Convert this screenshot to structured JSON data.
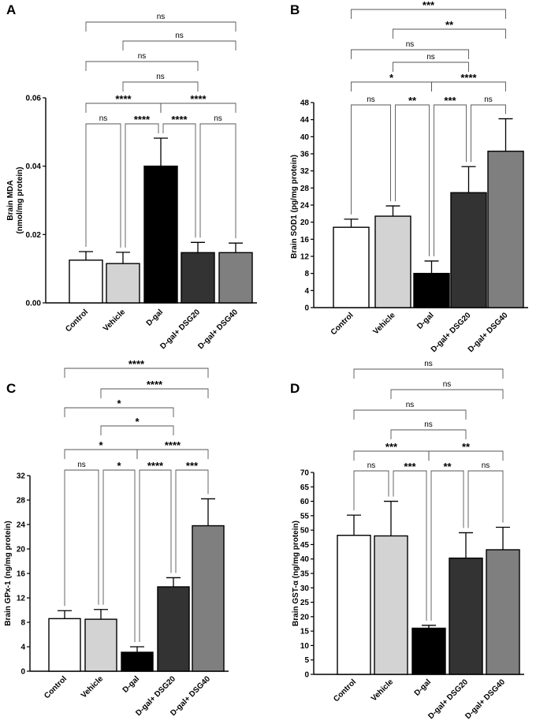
{
  "figure": {
    "panels": [
      "A",
      "B",
      "C",
      "D"
    ]
  },
  "chart_data": [
    {
      "panel": "A",
      "type": "bar",
      "ylabel": [
        "Brain MDA",
        "(nmol/mg protein)"
      ],
      "ylim": [
        0,
        0.06
      ],
      "yticks": [
        0,
        0.02,
        0.04,
        0.06
      ],
      "ytick_labels": [
        "0.00",
        "0.02",
        "0.04",
        "0.06"
      ],
      "categories": [
        "Control",
        "Vehicle",
        "D-gal",
        "D-gal+ DSG20",
        "D-gal+ DSG40"
      ],
      "values": [
        0.0125,
        0.0115,
        0.04,
        0.0147,
        0.0147
      ],
      "errors": [
        0.0025,
        0.0033,
        0.0082,
        0.003,
        0.0028
      ],
      "colors": [
        "#ffffff",
        "#d3d3d3",
        "#000000",
        "#333333",
        "#7f7f7f"
      ],
      "comparisons": [
        {
          "i": 0,
          "j": 1,
          "label": "ns"
        },
        {
          "i": 1,
          "j": 2,
          "label": "****"
        },
        {
          "i": 2,
          "j": 3,
          "label": "****"
        },
        {
          "i": 3,
          "j": 4,
          "label": "ns"
        },
        {
          "i": 0,
          "j": 2,
          "label": "****"
        },
        {
          "i": 2,
          "j": 4,
          "label": "****"
        },
        {
          "i": 1,
          "j": 3,
          "label": "ns"
        },
        {
          "i": 0,
          "j": 3,
          "label": "ns"
        },
        {
          "i": 1,
          "j": 4,
          "label": "ns"
        },
        {
          "i": 0,
          "j": 4,
          "label": "ns"
        }
      ]
    },
    {
      "panel": "B",
      "type": "bar",
      "ylabel": [
        "Brain SOD1 (pg/mg protein)"
      ],
      "ylim": [
        0,
        48
      ],
      "yticks": [
        0,
        4,
        8,
        12,
        16,
        20,
        24,
        28,
        32,
        36,
        40,
        44,
        48
      ],
      "ytick_labels": [
        "0",
        "4",
        "8",
        "12",
        "16",
        "20",
        "24",
        "28",
        "32",
        "36",
        "40",
        "44",
        "48"
      ],
      "categories": [
        "Control",
        "Vehicle",
        "D-gal",
        "D-gal+ DSG20",
        "D-gal+ DSG40"
      ],
      "values": [
        18.8,
        21.4,
        8.0,
        26.9,
        36.6
      ],
      "errors": [
        1.9,
        2.4,
        2.9,
        6.1,
        7.6
      ],
      "colors": [
        "#ffffff",
        "#d3d3d3",
        "#000000",
        "#333333",
        "#7f7f7f"
      ],
      "comparisons": [
        {
          "i": 0,
          "j": 1,
          "label": "ns"
        },
        {
          "i": 1,
          "j": 2,
          "label": "**"
        },
        {
          "i": 2,
          "j": 3,
          "label": "***"
        },
        {
          "i": 3,
          "j": 4,
          "label": "ns"
        },
        {
          "i": 0,
          "j": 2,
          "label": "*"
        },
        {
          "i": 2,
          "j": 4,
          "label": "****"
        },
        {
          "i": 1,
          "j": 3,
          "label": "ns"
        },
        {
          "i": 0,
          "j": 3,
          "label": "ns"
        },
        {
          "i": 1,
          "j": 4,
          "label": "**"
        },
        {
          "i": 0,
          "j": 4,
          "label": "***"
        }
      ]
    },
    {
      "panel": "C",
      "type": "bar",
      "ylabel": [
        "Brain GPx-1 (ng/mg protein)"
      ],
      "ylim": [
        0,
        32
      ],
      "yticks": [
        0,
        4,
        8,
        12,
        16,
        20,
        24,
        28,
        32
      ],
      "ytick_labels": [
        "0",
        "4",
        "8",
        "12",
        "16",
        "20",
        "24",
        "28",
        "32"
      ],
      "categories": [
        "Control",
        "Vehicle",
        "D-gal",
        "D-gal+ DSG20",
        "D-gal+ DSG40"
      ],
      "values": [
        8.6,
        8.5,
        3.1,
        13.8,
        23.8
      ],
      "errors": [
        1.3,
        1.6,
        0.9,
        1.5,
        4.4
      ],
      "colors": [
        "#ffffff",
        "#d3d3d3",
        "#000000",
        "#333333",
        "#7f7f7f"
      ],
      "comparisons": [
        {
          "i": 0,
          "j": 1,
          "label": "ns"
        },
        {
          "i": 1,
          "j": 2,
          "label": "*"
        },
        {
          "i": 2,
          "j": 3,
          "label": "****"
        },
        {
          "i": 3,
          "j": 4,
          "label": "***"
        },
        {
          "i": 0,
          "j": 2,
          "label": "*"
        },
        {
          "i": 2,
          "j": 4,
          "label": "****"
        },
        {
          "i": 1,
          "j": 3,
          "label": "*"
        },
        {
          "i": 0,
          "j": 3,
          "label": "*"
        },
        {
          "i": 1,
          "j": 4,
          "label": "****"
        },
        {
          "i": 0,
          "j": 4,
          "label": "****"
        }
      ]
    },
    {
      "panel": "D",
      "type": "bar",
      "ylabel": [
        "Brain GST-α (ng/mg protein)"
      ],
      "ylim": [
        0,
        70
      ],
      "yticks": [
        0,
        5,
        10,
        15,
        20,
        25,
        30,
        35,
        40,
        45,
        50,
        55,
        60,
        65,
        70
      ],
      "ytick_labels": [
        "0",
        "5",
        "10",
        "15",
        "20",
        "25",
        "30",
        "35",
        "40",
        "45",
        "50",
        "55",
        "60",
        "65",
        "70"
      ],
      "categories": [
        "Control",
        "Vehicle",
        "D-gal",
        "D-gal+ DSG20",
        "D-gal+ DSG40"
      ],
      "values": [
        48.2,
        48.0,
        16.0,
        40.3,
        43.2
      ],
      "errors": [
        7.0,
        12.0,
        1.0,
        8.8,
        7.8
      ],
      "colors": [
        "#ffffff",
        "#d3d3d3",
        "#000000",
        "#333333",
        "#7f7f7f"
      ],
      "comparisons": [
        {
          "i": 0,
          "j": 1,
          "label": "ns"
        },
        {
          "i": 1,
          "j": 2,
          "label": "***"
        },
        {
          "i": 2,
          "j": 3,
          "label": "**"
        },
        {
          "i": 3,
          "j": 4,
          "label": "ns"
        },
        {
          "i": 0,
          "j": 2,
          "label": "***"
        },
        {
          "i": 2,
          "j": 4,
          "label": "**"
        },
        {
          "i": 1,
          "j": 3,
          "label": "ns"
        },
        {
          "i": 0,
          "j": 3,
          "label": "ns"
        },
        {
          "i": 1,
          "j": 4,
          "label": "ns"
        },
        {
          "i": 0,
          "j": 4,
          "label": "ns"
        }
      ]
    }
  ]
}
